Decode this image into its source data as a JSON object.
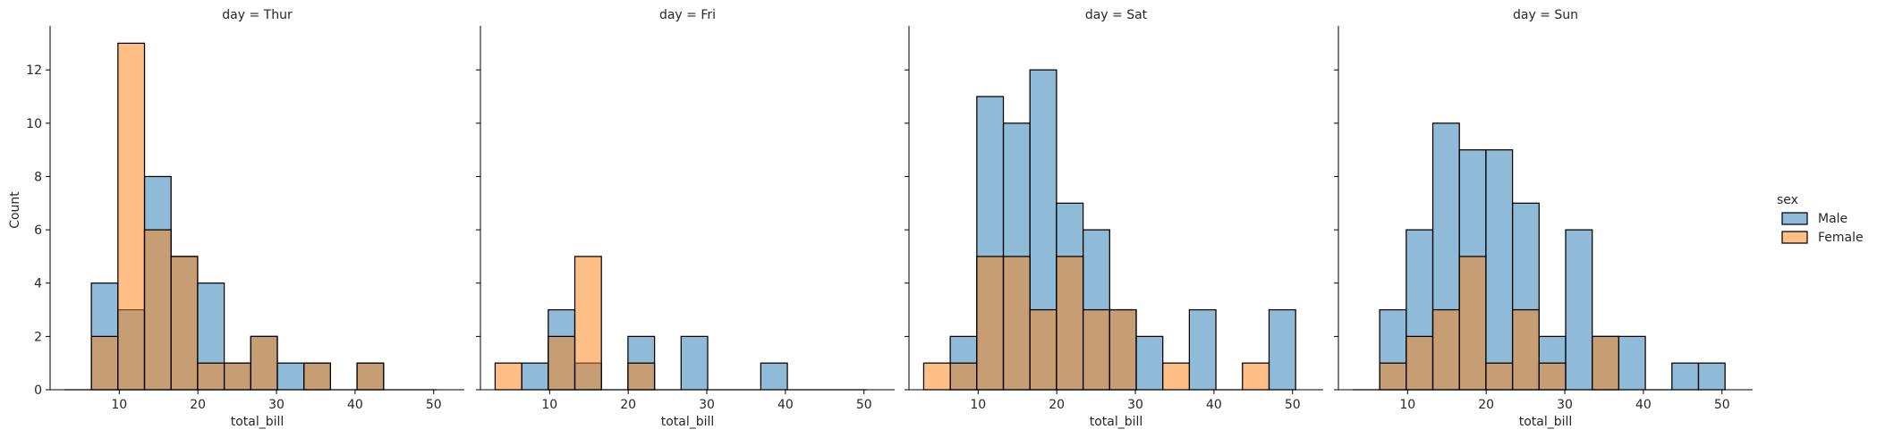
{
  "figure": {
    "ylabel": "Count",
    "xlabel": "total_bill",
    "colors": {
      "Male": "#1f77b4",
      "Female": "#ff7f0e"
    }
  },
  "legend": {
    "title": "sex",
    "entries": [
      "Male",
      "Female"
    ]
  },
  "chart_data": [
    {
      "type": "bar",
      "subtype": "overlaid-histogram",
      "title": "day = Thur",
      "xlabel": "total_bill",
      "ylabel": "Count",
      "xlim": [
        1.2,
        53.9
      ],
      "ylim": [
        0,
        13.65
      ],
      "xticks": [
        10,
        20,
        30,
        40,
        50
      ],
      "yticks": [
        0,
        2,
        4,
        6,
        8,
        10,
        12
      ],
      "bin_edges": [
        3.07,
        6.45,
        9.83,
        13.21,
        16.59,
        19.97,
        23.35,
        26.73,
        30.11,
        33.49,
        36.87,
        40.25,
        43.63,
        47.01,
        50.39
      ],
      "series": [
        {
          "name": "Male",
          "color": "#1f77b4",
          "values": [
            0,
            4,
            3,
            8,
            5,
            4,
            1,
            2,
            1,
            1,
            0,
            1,
            0,
            0
          ]
        },
        {
          "name": "Female",
          "color": "#ff7f0e",
          "values": [
            0,
            2,
            13,
            6,
            5,
            1,
            1,
            2,
            0,
            1,
            0,
            1,
            0,
            0
          ]
        }
      ]
    },
    {
      "type": "bar",
      "subtype": "overlaid-histogram",
      "title": "day = Fri",
      "xlabel": "total_bill",
      "ylabel": "Count",
      "xlim": [
        1.2,
        53.9
      ],
      "ylim": [
        0,
        13.65
      ],
      "xticks": [
        10,
        20,
        30,
        40,
        50
      ],
      "yticks": [
        0,
        2,
        4,
        6,
        8,
        10,
        12
      ],
      "bin_edges": [
        3.07,
        6.45,
        9.83,
        13.21,
        16.59,
        19.97,
        23.35,
        26.73,
        30.11,
        33.49,
        36.87,
        40.25,
        43.63,
        47.01,
        50.39
      ],
      "series": [
        {
          "name": "Male",
          "color": "#1f77b4",
          "values": [
            0,
            1,
            3,
            1,
            0,
            2,
            0,
            2,
            0,
            0,
            1,
            0,
            0,
            0
          ]
        },
        {
          "name": "Female",
          "color": "#ff7f0e",
          "values": [
            1,
            0,
            2,
            5,
            0,
            1,
            0,
            0,
            0,
            0,
            0,
            0,
            0,
            0
          ]
        }
      ]
    },
    {
      "type": "bar",
      "subtype": "overlaid-histogram",
      "title": "day = Sat",
      "xlabel": "total_bill",
      "ylabel": "Count",
      "xlim": [
        1.2,
        53.9
      ],
      "ylim": [
        0,
        13.65
      ],
      "xticks": [
        10,
        20,
        30,
        40,
        50
      ],
      "yticks": [
        0,
        2,
        4,
        6,
        8,
        10,
        12
      ],
      "bin_edges": [
        3.07,
        6.45,
        9.83,
        13.21,
        16.59,
        19.97,
        23.35,
        26.73,
        30.11,
        33.49,
        36.87,
        40.25,
        43.63,
        47.01,
        50.39
      ],
      "series": [
        {
          "name": "Male",
          "color": "#1f77b4",
          "values": [
            0,
            2,
            11,
            10,
            12,
            7,
            6,
            3,
            2,
            0,
            3,
            0,
            0,
            3
          ]
        },
        {
          "name": "Female",
          "color": "#ff7f0e",
          "values": [
            1,
            1,
            5,
            5,
            3,
            5,
            3,
            3,
            0,
            1,
            0,
            0,
            1,
            0
          ]
        }
      ]
    },
    {
      "type": "bar",
      "subtype": "overlaid-histogram",
      "title": "day = Sun",
      "xlabel": "total_bill",
      "ylabel": "Count",
      "xlim": [
        1.2,
        53.9
      ],
      "ylim": [
        0,
        13.65
      ],
      "xticks": [
        10,
        20,
        30,
        40,
        50
      ],
      "yticks": [
        0,
        2,
        4,
        6,
        8,
        10,
        12
      ],
      "bin_edges": [
        3.07,
        6.45,
        9.83,
        13.21,
        16.59,
        19.97,
        23.35,
        26.73,
        30.11,
        33.49,
        36.87,
        40.25,
        43.63,
        47.01,
        50.39
      ],
      "series": [
        {
          "name": "Male",
          "color": "#1f77b4",
          "values": [
            0,
            3,
            6,
            10,
            9,
            9,
            7,
            2,
            6,
            2,
            2,
            0,
            1,
            1
          ]
        },
        {
          "name": "Female",
          "color": "#ff7f0e",
          "values": [
            0,
            1,
            2,
            3,
            5,
            1,
            3,
            1,
            0,
            2,
            0,
            0,
            0,
            0
          ]
        }
      ]
    }
  ]
}
